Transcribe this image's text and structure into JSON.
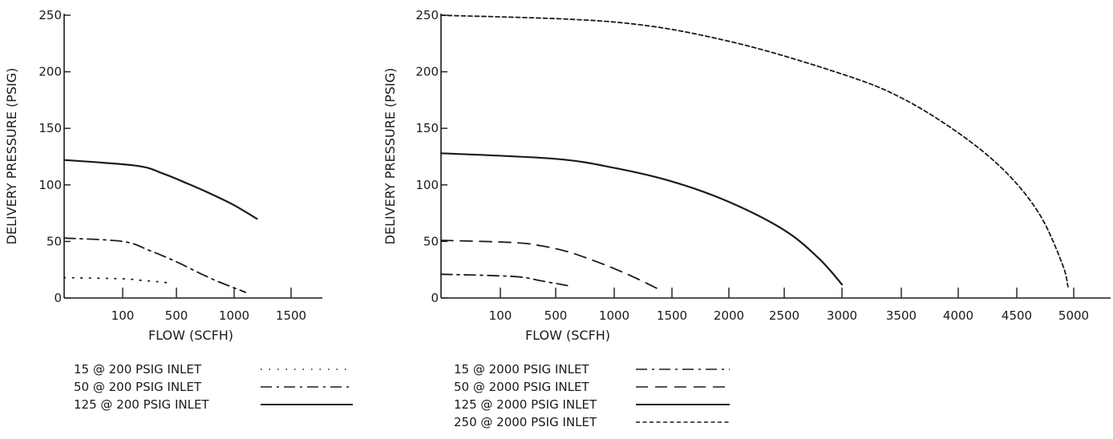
{
  "chart_data": [
    {
      "type": "line",
      "ylabel": "DELIVERY PRESSURE (PSIG)",
      "xlabel": "FLOW (SCFH)",
      "ylim": [
        0,
        250
      ],
      "y_ticks": [
        "0",
        "50",
        "100",
        "150",
        "200",
        "250"
      ],
      "x_ticks": [
        "100",
        "500",
        "1000",
        "1500"
      ],
      "x_tick_values": [
        100,
        500,
        1000,
        1500
      ],
      "grid": false,
      "series": [
        {
          "name": "15 @ 200  PSIG INLET",
          "style": "dotted",
          "points": [
            [
              0,
              18
            ],
            [
              100,
              17
            ],
            [
              200,
              16
            ],
            [
              300,
              15
            ],
            [
              400,
              14
            ],
            [
              450,
              13
            ]
          ]
        },
        {
          "name": "50 @ 200  PSIG INLET",
          "style": "dashdot",
          "points": [
            [
              0,
              53
            ],
            [
              100,
              50
            ],
            [
              300,
              42
            ],
            [
              500,
              32
            ],
            [
              700,
              22
            ],
            [
              850,
              15
            ],
            [
              1000,
              9
            ],
            [
              1100,
              5
            ]
          ]
        },
        {
          "name": "125 @ 200  PSIG INLET",
          "style": "solid",
          "points": [
            [
              0,
              122
            ],
            [
              200,
              117
            ],
            [
              400,
              110
            ],
            [
              600,
              101
            ],
            [
              800,
              92
            ],
            [
              1000,
              82
            ],
            [
              1200,
              70
            ]
          ]
        }
      ]
    },
    {
      "type": "line",
      "ylabel": "DELIVERY PRESSURE (PSIG)",
      "xlabel": "FLOW (SCFH)",
      "ylim": [
        0,
        250
      ],
      "y_ticks": [
        "0",
        "50",
        "100",
        "150",
        "200",
        "250"
      ],
      "x_ticks": [
        "100",
        "500",
        "1000",
        "1500",
        "2000",
        "2500",
        "3000",
        "3500",
        "4000",
        "4500",
        "5000"
      ],
      "x_tick_values": [
        100,
        500,
        1000,
        1500,
        2000,
        2500,
        3000,
        3500,
        4000,
        4500,
        5000
      ],
      "grid": false,
      "series": [
        {
          "name": "15 @ 2000 PSIG INLET",
          "style": "dashdot",
          "points": [
            [
              0,
              21
            ],
            [
              200,
              19
            ],
            [
              400,
              15
            ],
            [
              600,
              11
            ]
          ]
        },
        {
          "name": "50 @ 2000 PSIG INLET",
          "style": "dashed",
          "points": [
            [
              0,
              51
            ],
            [
              200,
              49
            ],
            [
              400,
              46
            ],
            [
              600,
              41
            ],
            [
              800,
              34
            ],
            [
              1000,
              26
            ],
            [
              1200,
              17
            ],
            [
              1400,
              7
            ]
          ]
        },
        {
          "name": "125 @ 2000 PSIG INLET",
          "style": "solid",
          "points": [
            [
              0,
              128
            ],
            [
              500,
              123
            ],
            [
              1000,
              115
            ],
            [
              1500,
              103
            ],
            [
              2000,
              85
            ],
            [
              2500,
              60
            ],
            [
              2800,
              35
            ],
            [
              3000,
              12
            ]
          ]
        },
        {
          "name": "250 @ 2000 PSIG INLET",
          "style": "shortdash",
          "points": [
            [
              0,
              250
            ],
            [
              1000,
              244
            ],
            [
              2000,
              227
            ],
            [
              3000,
              198
            ],
            [
              3500,
              177
            ],
            [
              4000,
              146
            ],
            [
              4400,
              112
            ],
            [
              4700,
              74
            ],
            [
              4900,
              30
            ],
            [
              4950,
              10
            ]
          ]
        }
      ]
    }
  ]
}
